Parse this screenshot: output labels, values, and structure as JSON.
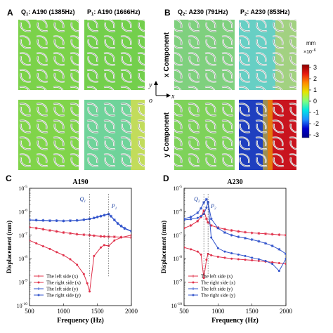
{
  "panels": {
    "A": {
      "letter": "A",
      "q_label": "Q",
      "q_sub": "1",
      "q_rest": ": A190 (1385Hz)",
      "p_label": "P",
      "p_sub": "1",
      "p_rest": ": A190 (1666Hz)"
    },
    "B": {
      "letter": "B",
      "q_label": "Q",
      "q_sub": "2",
      "q_rest": ": A230 (791Hz)",
      "p_label": "P",
      "p_sub": "2",
      "p_rest": ": A230 (853Hz)"
    }
  },
  "components": {
    "x": "x Component",
    "y": "y Component"
  },
  "axes_glyph": {
    "y": "y",
    "x": "x",
    "o": "o"
  },
  "colorbar": {
    "unit": "mm",
    "exponent": "×10",
    "exponent_power": "−6",
    "ticks": [
      "3",
      "2",
      "1",
      "0",
      "-1",
      "-2",
      "-3"
    ],
    "colors": [
      "#8b0000",
      "#e8190f",
      "#ff8c00",
      "#e5e500",
      "#7fff7f",
      "#00e5e5",
      "#1e90ff",
      "#0000cd",
      "#00008b"
    ]
  },
  "field_colors": {
    "A_qx": "#7bd24a",
    "A_px": "#73cf4c",
    "A_qy": "#80d44a",
    "A_py": "#6fd39a",
    "B_qx": "#7fd07e",
    "B_px": "#67cfc4",
    "B_qy": "#7ed25a"
  },
  "chart_data": [
    {
      "type": "line",
      "panel_letter": "C",
      "title": "A190",
      "xlabel": "Frequency (Hz)",
      "ylabel": "Displacement (mm)",
      "xlim": [
        500,
        2000
      ],
      "ylim_log10": [
        -10,
        -5
      ],
      "xticks": [
        "500",
        "1000",
        "1500",
        "2000"
      ],
      "yticks": [
        {
          "base": "10",
          "exp": "-5"
        },
        {
          "base": "10",
          "exp": "-6"
        },
        {
          "base": "10",
          "exp": "-7"
        },
        {
          "base": "10",
          "exp": "-8"
        },
        {
          "base": "10",
          "exp": "-9"
        },
        {
          "base": "10",
          "exp": "-10"
        }
      ],
      "series": [
        {
          "name": "The left side (x)",
          "color": "#e0304a",
          "marker": "star",
          "x": [
            500,
            600,
            700,
            800,
            900,
            1000,
            1100,
            1200,
            1300,
            1385,
            1450,
            1550,
            1600,
            1666,
            1750,
            1850,
            2000
          ],
          "y": [
            2.2e-07,
            2e-07,
            1.8e-07,
            1.6e-07,
            1.45e-07,
            1.3e-07,
            1.2e-07,
            1.1e-07,
            1.05e-07,
            1e-07,
            9.5e-08,
            9e-08,
            8.8e-08,
            8.7e-08,
            8.5e-08,
            8.3e-08,
            8e-08
          ]
        },
        {
          "name": "The right side (x)",
          "color": "#e0304a",
          "marker": "dot",
          "x": [
            500,
            600,
            700,
            800,
            900,
            1000,
            1100,
            1200,
            1300,
            1350,
            1385,
            1450,
            1550,
            1600,
            1666,
            1750,
            1850,
            2000
          ],
          "y": [
            6e-08,
            4.5e-08,
            3.4e-08,
            2.6e-08,
            1.9e-08,
            1.4e-08,
            9.5e-09,
            5.5e-09,
            2.2e-09,
            9e-10,
            4e-10,
            1.3e-08,
            3e-08,
            3.8e-08,
            3.5e-08,
            6e-08,
            8e-08,
            1e-07
          ]
        },
        {
          "name": "The left side (y)",
          "color": "#3355cc",
          "marker": "star",
          "x": [
            500,
            600,
            700,
            800,
            900,
            1000,
            1100,
            1200,
            1300,
            1385,
            1450,
            1500,
            1550,
            1600,
            1666,
            1700,
            1750,
            1800,
            1850,
            1900,
            2000
          ],
          "y": [
            4.5e-07,
            4.4e-07,
            4.3e-07,
            4.2e-07,
            4.2e-07,
            4.1e-07,
            4.2e-07,
            4.3e-07,
            4.6e-07,
            5e-07,
            5.5e-07,
            6e-07,
            6.5e-07,
            7.2e-07,
            8e-07,
            6.5e-07,
            4.5e-07,
            3.2e-07,
            2.5e-07,
            2e-07,
            1.5e-07
          ]
        },
        {
          "name": "The right side (y)",
          "color": "#3355cc",
          "marker": "dot",
          "x": [
            500,
            600,
            700,
            800,
            900,
            1000,
            1100,
            1200,
            1300,
            1385,
            1450,
            1500,
            1550,
            1600,
            1666,
            1700,
            1750,
            1800,
            1850,
            1900,
            2000
          ],
          "y": [
            4.4e-07,
            4.3e-07,
            4.2e-07,
            4.1e-07,
            4.1e-07,
            4e-07,
            4.1e-07,
            4.2e-07,
            4.5e-07,
            4.9e-07,
            5.4e-07,
            5.9e-07,
            6.4e-07,
            7e-07,
            7.8e-07,
            6.3e-07,
            4.4e-07,
            3.1e-07,
            2.4e-07,
            1.9e-07,
            1.45e-07
          ]
        }
      ],
      "annotations": [
        {
          "label": "Q",
          "sub": "1",
          "x": 1385
        },
        {
          "label": "P",
          "sub": "1",
          "x": 1666
        }
      ],
      "legend": "bottom-left"
    },
    {
      "type": "line",
      "panel_letter": "D",
      "title": "A230",
      "xlabel": "Frequency (Hz)",
      "ylabel": "Displacement (mm)",
      "xlim": [
        500,
        2000
      ],
      "ylim_log10": [
        -10,
        -5
      ],
      "xticks": [
        "500",
        "1000",
        "1500",
        "2000"
      ],
      "yticks": [
        {
          "base": "10",
          "exp": "-5"
        },
        {
          "base": "10",
          "exp": "-6"
        },
        {
          "base": "10",
          "exp": "-7"
        },
        {
          "base": "10",
          "exp": "-8"
        },
        {
          "base": "10",
          "exp": "-9"
        },
        {
          "base": "10",
          "exp": "-10"
        }
      ],
      "series": [
        {
          "name": "The left side (x)",
          "color": "#e0304a",
          "marker": "star",
          "x": [
            500,
            600,
            700,
            750,
            791,
            830,
            853,
            900,
            1000,
            1100,
            1200,
            1300,
            1400,
            1500,
            1600,
            1700,
            1800,
            1900,
            2000
          ],
          "y": [
            2e-07,
            2.6e-07,
            4e-07,
            6e-07,
            1.1e-06,
            5e-07,
            3.5e-07,
            2.6e-07,
            2.1e-07,
            1.8e-07,
            1.6e-07,
            1.45e-07,
            1.35e-07,
            1.25e-07,
            1.2e-07,
            1.15e-07,
            1.1e-07,
            1.05e-07,
            1e-07
          ]
        },
        {
          "name": "The right side (x)",
          "color": "#e0304a",
          "marker": "dot",
          "x": [
            500,
            600,
            700,
            750,
            791,
            830,
            853,
            900,
            1000,
            1100,
            1200,
            1300,
            1400,
            1500,
            1600,
            1700,
            1800,
            1900,
            2000
          ],
          "y": [
            3e-08,
            2.5e-08,
            2e-08,
            1.5e-08,
            1.5e-09,
            9e-09,
            1.6e-08,
            1.4e-08,
            1.2e-08,
            1.1e-08,
            1e-08,
            9.5e-09,
            9e-09,
            8.5e-09,
            8e-09,
            7.5e-09,
            7e-09,
            6.5e-09,
            6e-09
          ]
        },
        {
          "name": "The left side (y)",
          "color": "#3355cc",
          "marker": "star",
          "x": [
            500,
            600,
            700,
            750,
            791,
            830,
            853,
            900,
            1000,
            1100,
            1200,
            1300,
            1400,
            1500,
            1600,
            1700,
            1800,
            1900,
            2000
          ],
          "y": [
            5e-07,
            6e-07,
            9e-07,
            1.4e-06,
            2.5e-06,
            3.4e-06,
            2.5e-06,
            5e-07,
            2e-07,
            1.3e-07,
            1e-07,
            8.5e-08,
            7.5e-08,
            6.5e-08,
            5.5e-08,
            4.5e-08,
            3.5e-08,
            2.5e-08,
            1.6e-08
          ]
        },
        {
          "name": "The right side (y)",
          "color": "#3355cc",
          "marker": "dot",
          "x": [
            500,
            600,
            700,
            750,
            791,
            830,
            853,
            900,
            1000,
            1100,
            1200,
            1300,
            1400,
            1500,
            1600,
            1700,
            1800,
            1900,
            2000
          ],
          "y": [
            4.5e-07,
            4.8e-07,
            5.5e-07,
            6.5e-07,
            8e-07,
            1.5e-06,
            2.6e-06,
            8e-08,
            2.8e-08,
            2e-08,
            1.7e-08,
            1.5e-08,
            1.3e-08,
            1.1e-08,
            9.5e-09,
            8e-09,
            6e-09,
            3e-09,
            1e-08
          ]
        }
      ],
      "annotations": [
        {
          "label": "Q",
          "sub": "2",
          "x": 791
        },
        {
          "label": "P",
          "sub": "2",
          "x": 853
        }
      ],
      "legend": "bottom-left"
    }
  ]
}
